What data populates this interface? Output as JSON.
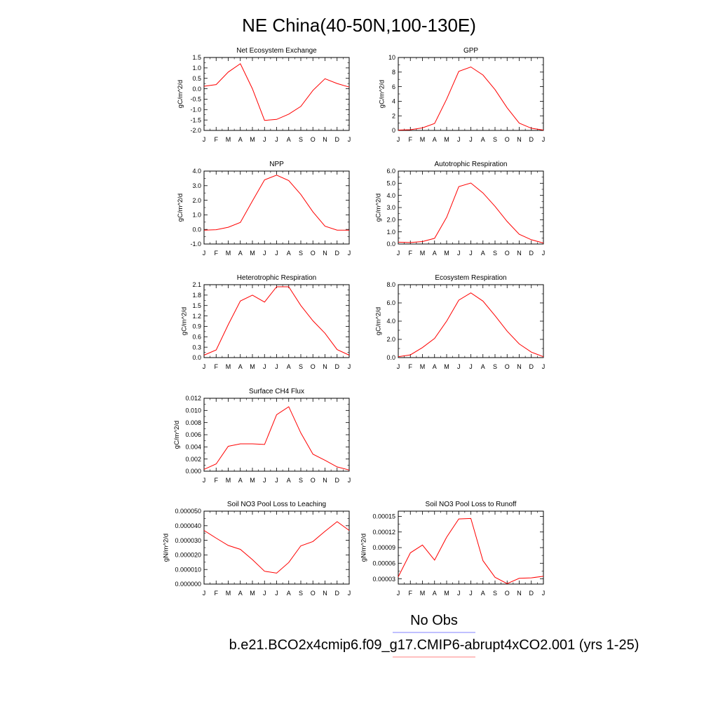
{
  "title": "NE China(40-50N,100-130E)",
  "legend": [
    {
      "label": "No Obs",
      "color": "#8080ff"
    },
    {
      "label": "b.e21.BCO2x4cmip6.f09_g17.CMIP6-abrupt4xCO2.001 (yrs 1-25)",
      "color": "#ff8080"
    }
  ],
  "line_color": "#ff0000",
  "months": [
    "J",
    "F",
    "M",
    "A",
    "M",
    "J",
    "J",
    "A",
    "S",
    "O",
    "N",
    "D",
    "J"
  ],
  "chart_data": [
    {
      "type": "line",
      "title": "Net Ecosystem Exchange",
      "ylabel": "gC/m^2/d",
      "ylim": [
        -2.0,
        1.5
      ],
      "yticks": [
        "1.5",
        "1.0",
        "0.5",
        "0.0",
        "-0.5",
        "-1.0",
        "-1.5",
        "-2.0"
      ],
      "ytick_values": [
        1.5,
        1.0,
        0.5,
        0.0,
        -0.5,
        -1.0,
        -1.5,
        -2.0
      ],
      "x": [
        0,
        1,
        2,
        3,
        4,
        5,
        6,
        7,
        8,
        9,
        10,
        11,
        12
      ],
      "values": [
        0.12,
        0.2,
        0.8,
        1.2,
        0.0,
        -1.52,
        -1.47,
        -1.22,
        -0.85,
        -0.08,
        0.48,
        0.25,
        0.08
      ]
    },
    {
      "type": "line",
      "title": "GPP",
      "ylabel": "gC/m^2/d",
      "ylim": [
        0,
        10
      ],
      "yticks": [
        "10",
        "8",
        "6",
        "4",
        "2",
        "0"
      ],
      "ytick_values": [
        10,
        8,
        6,
        4,
        2,
        0
      ],
      "x": [
        0,
        1,
        2,
        3,
        4,
        5,
        6,
        7,
        8,
        9,
        10,
        11,
        12
      ],
      "values": [
        0.05,
        0.1,
        0.35,
        0.95,
        4.3,
        8.1,
        8.7,
        7.6,
        5.6,
        3.1,
        1.0,
        0.3,
        0.05
      ]
    },
    {
      "type": "line",
      "title": "NPP",
      "ylabel": "gC/m^2/d",
      "ylim": [
        -1.0,
        4.0
      ],
      "yticks": [
        "4.0",
        "3.0",
        "2.0",
        "1.0",
        "0.0",
        "-1.0"
      ],
      "ytick_values": [
        4.0,
        3.0,
        2.0,
        1.0,
        0.0,
        -1.0
      ],
      "x": [
        0,
        1,
        2,
        3,
        4,
        5,
        6,
        7,
        8,
        9,
        10,
        11,
        12
      ],
      "values": [
        -0.05,
        -0.02,
        0.15,
        0.48,
        1.95,
        3.4,
        3.72,
        3.35,
        2.4,
        1.2,
        0.22,
        -0.05,
        -0.05
      ]
    },
    {
      "type": "line",
      "title": "Autotrophic Respiration",
      "ylabel": "gC/m^2/d",
      "ylim": [
        0,
        6.0
      ],
      "yticks": [
        "6.0",
        "5.0",
        "4.0",
        "3.0",
        "2.0",
        "1.0",
        "0.0"
      ],
      "ytick_values": [
        6,
        5,
        4,
        3,
        2,
        1,
        0
      ],
      "x": [
        0,
        1,
        2,
        3,
        4,
        5,
        6,
        7,
        8,
        9,
        10,
        11,
        12
      ],
      "values": [
        0.15,
        0.12,
        0.2,
        0.47,
        2.2,
        4.72,
        5.02,
        4.2,
        3.1,
        1.85,
        0.8,
        0.35,
        0.08
      ]
    },
    {
      "type": "line",
      "title": "Heterotrophic Respiration",
      "ylabel": "gC/m^2/d",
      "ylim": [
        0,
        2.1
      ],
      "yticks": [
        "2.1",
        "1.8",
        "1.5",
        "1.2",
        "0.9",
        "0.6",
        "0.3",
        "0.0"
      ],
      "ytick_values": [
        2.1,
        1.8,
        1.5,
        1.2,
        0.9,
        0.6,
        0.3,
        0.0
      ],
      "x": [
        0,
        1,
        2,
        3,
        4,
        5,
        6,
        7,
        8,
        9,
        10,
        11,
        12
      ],
      "values": [
        0.07,
        0.22,
        0.95,
        1.63,
        1.8,
        1.6,
        2.04,
        2.04,
        1.5,
        1.06,
        0.7,
        0.23,
        0.07
      ]
    },
    {
      "type": "line",
      "title": "Ecosystem Respiration",
      "ylabel": "gC/m^2/d",
      "ylim": [
        0,
        8.0
      ],
      "yticks": [
        "8.0",
        "6.0",
        "4.0",
        "2.0",
        "0.0"
      ],
      "ytick_values": [
        8,
        6,
        4,
        2,
        0
      ],
      "x": [
        0,
        1,
        2,
        3,
        4,
        5,
        6,
        7,
        8,
        9,
        10,
        11,
        12
      ],
      "values": [
        0.1,
        0.3,
        1.1,
        2.1,
        4.0,
        6.3,
        7.1,
        6.2,
        4.6,
        2.9,
        1.5,
        0.6,
        0.1
      ]
    },
    {
      "type": "line",
      "title": "Surface CH4 Flux",
      "ylabel": "gC/m^2/d",
      "ylim": [
        0,
        0.012
      ],
      "yticks": [
        "0.012",
        "0.010",
        "0.008",
        "0.006",
        "0.004",
        "0.002",
        "0.000"
      ],
      "ytick_values": [
        0.012,
        0.01,
        0.008,
        0.006,
        0.004,
        0.002,
        0.0
      ],
      "x": [
        0,
        1,
        2,
        3,
        4,
        5,
        6,
        7,
        8,
        9,
        10,
        11,
        12
      ],
      "values": [
        0.0003,
        0.0012,
        0.0041,
        0.0045,
        0.0045,
        0.0044,
        0.0093,
        0.0106,
        0.0063,
        0.0028,
        0.0018,
        0.0007,
        0.0002
      ]
    },
    {
      "type": "line",
      "title": "Soil NO3 Pool Loss to Leaching",
      "ylabel": "gN/m^2/d",
      "ylim": [
        0,
        5e-05
      ],
      "yticks": [
        "0.000050",
        "0.000040",
        "0.000030",
        "0.000020",
        "0.000010",
        "0.000000"
      ],
      "ytick_values": [
        5e-05,
        4e-05,
        3e-05,
        2e-05,
        1e-05,
        0.0
      ],
      "x": [
        0,
        1,
        2,
        3,
        4,
        5,
        6,
        7,
        8,
        9,
        10,
        11,
        12
      ],
      "values": [
        3.68e-05,
        3.15e-05,
        2.65e-05,
        2.38e-05,
        1.68e-05,
        8.8e-06,
        7.5e-06,
        1.48e-05,
        2.62e-05,
        2.92e-05,
        3.62e-05,
        4.28e-05,
        3.68e-05
      ]
    },
    {
      "type": "line",
      "title": "Soil NO3 Pool Loss to Runoff",
      "ylabel": "gN/m^2/d",
      "ylim": [
        2e-05,
        0.00016
      ],
      "yticks": [
        "0.00015",
        "0.00012",
        "0.00009",
        "0.00006",
        "0.00003"
      ],
      "ytick_values": [
        0.00015,
        0.00012,
        9e-05,
        6e-05,
        3e-05
      ],
      "x": [
        0,
        1,
        2,
        3,
        4,
        5,
        6,
        7,
        8,
        9,
        10,
        11,
        12
      ],
      "values": [
        3.4e-05,
        8e-05,
        9.5e-05,
        6.6e-05,
        0.00011,
        0.000145,
        0.000146,
        6.5e-05,
        3.3e-05,
        2.1e-05,
        3.1e-05,
        3.2e-05,
        3.5e-05
      ]
    }
  ]
}
